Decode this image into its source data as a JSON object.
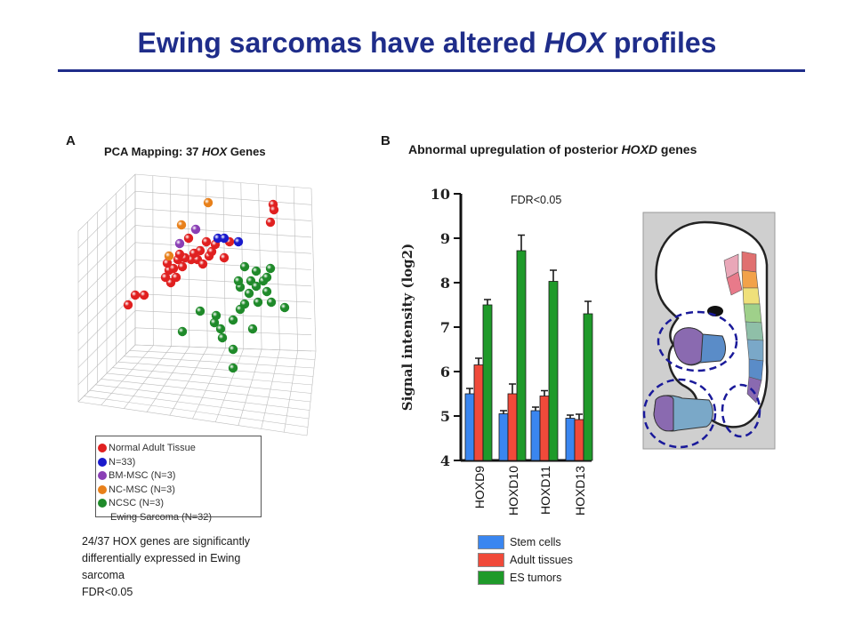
{
  "title": {
    "prefix": "Ewing sarcomas have altered ",
    "italic": "HOX",
    "suffix": " profiles"
  },
  "panelA": {
    "letter": "A",
    "heading_prefix": "PCA Mapping: 37 ",
    "heading_italic": "HOX",
    "heading_suffix": " Genes",
    "legend": [
      {
        "label": "Normal Adult Tissue",
        "color": "#e02020"
      },
      {
        "label": "N=33)",
        "color": "#1a1acc"
      },
      {
        "label": "BM-MSC (N=3)",
        "color": "#8a3fb5"
      },
      {
        "label": "NC-MSC (N=3)",
        "color": "#e8801a"
      },
      {
        "label": "NCSC (N=3)",
        "color": "#1f8a2a"
      },
      {
        "label": "Ewing Sarcoma (N=32)",
        "color": ""
      }
    ],
    "note_lines": [
      "24/37 HOX genes are significantly",
      "differentially expressed in Ewing",
      "sarcoma",
      "FDR<0.05"
    ]
  },
  "panelB": {
    "letter": "B",
    "heading_prefix": "Abnormal upregulation of posterior ",
    "heading_italic": "HOXD",
    "heading_suffix": " genes",
    "fdr": "FDR<0.05",
    "legend": [
      {
        "label": "Stem cells",
        "color": "#3a86f0"
      },
      {
        "label": "Adult tissues",
        "color": "#f04a3a"
      },
      {
        "label": "ES tumors",
        "color": "#1f9a2a"
      }
    ]
  },
  "chart_data": [
    {
      "type": "bar",
      "categories": [
        "HOXD9",
        "HOXD10",
        "HOXD11",
        "HOXD13"
      ],
      "series": [
        {
          "name": "Stem cells",
          "values": [
            5.5,
            5.05,
            5.12,
            4.95
          ],
          "errors": [
            0.12,
            0.07,
            0.08,
            0.07
          ],
          "color": "#3a86f0"
        },
        {
          "name": "Adult tissues",
          "values": [
            6.15,
            5.5,
            5.45,
            4.92
          ],
          "errors": [
            0.15,
            0.22,
            0.12,
            0.12
          ],
          "color": "#f04a3a"
        },
        {
          "name": "ES tumors",
          "values": [
            7.5,
            8.72,
            8.03,
            7.3
          ],
          "errors": [
            0.12,
            0.35,
            0.25,
            0.28
          ],
          "color": "#1f9a2a"
        }
      ],
      "ylabel": "Signal intensity (log2)",
      "ylim": [
        4,
        10
      ],
      "yticks": [
        "4",
        "5",
        "6",
        "7",
        "8",
        "9",
        "10"
      ]
    },
    {
      "type": "scatter",
      "points": [
        {
          "x": 152,
          "y": 332,
          "c": "#e02020"
        },
        {
          "x": 162,
          "y": 332,
          "c": "#e02020"
        },
        {
          "x": 144,
          "y": 343,
          "c": "#e02020"
        },
        {
          "x": 190,
          "y": 304,
          "c": "#e02020"
        },
        {
          "x": 198,
          "y": 312,
          "c": "#e02020"
        },
        {
          "x": 205,
          "y": 300,
          "c": "#e02020"
        },
        {
          "x": 192,
          "y": 318,
          "c": "#e02020"
        },
        {
          "x": 215,
          "y": 292,
          "c": "#e02020"
        },
        {
          "x": 225,
          "y": 282,
          "c": "#e02020"
        },
        {
          "x": 235,
          "y": 288,
          "c": "#e02020"
        },
        {
          "x": 222,
          "y": 292,
          "c": "#e02020"
        },
        {
          "x": 200,
          "y": 292,
          "c": "#e02020"
        },
        {
          "x": 208,
          "y": 290,
          "c": "#e02020"
        },
        {
          "x": 228,
          "y": 297,
          "c": "#e02020"
        },
        {
          "x": 238,
          "y": 283,
          "c": "#e02020"
        },
        {
          "x": 212,
          "y": 268,
          "c": "#e02020"
        },
        {
          "x": 232,
          "y": 272,
          "c": "#e02020"
        },
        {
          "x": 258,
          "y": 272,
          "c": "#e02020"
        },
        {
          "x": 195,
          "y": 302,
          "c": "#e02020"
        },
        {
          "x": 186,
          "y": 312,
          "c": "#e02020"
        },
        {
          "x": 252,
          "y": 290,
          "c": "#e02020"
        },
        {
          "x": 307,
          "y": 230,
          "c": "#e02020"
        },
        {
          "x": 308,
          "y": 236,
          "c": "#e02020"
        },
        {
          "x": 304,
          "y": 250,
          "c": "#e02020"
        },
        {
          "x": 218,
          "y": 285,
          "c": "#e02020"
        },
        {
          "x": 242,
          "y": 275,
          "c": "#e02020"
        },
        {
          "x": 202,
          "y": 286,
          "c": "#e02020"
        },
        {
          "x": 188,
          "y": 296,
          "c": "#e02020"
        },
        {
          "x": 245,
          "y": 268,
          "c": "#1a1acc"
        },
        {
          "x": 252,
          "y": 268,
          "c": "#1a1acc"
        },
        {
          "x": 268,
          "y": 272,
          "c": "#1a1acc"
        },
        {
          "x": 202,
          "y": 274,
          "c": "#8a3fb5"
        },
        {
          "x": 220,
          "y": 258,
          "c": "#8a3fb5"
        },
        {
          "x": 234,
          "y": 228,
          "c": "#e8801a"
        },
        {
          "x": 204,
          "y": 253,
          "c": "#e8801a"
        },
        {
          "x": 190,
          "y": 288,
          "c": "#e8801a"
        },
        {
          "x": 275,
          "y": 300,
          "c": "#1f8a2a"
        },
        {
          "x": 288,
          "y": 305,
          "c": "#1f8a2a"
        },
        {
          "x": 304,
          "y": 302,
          "c": "#1f8a2a"
        },
        {
          "x": 282,
          "y": 316,
          "c": "#1f8a2a"
        },
        {
          "x": 296,
          "y": 316,
          "c": "#1f8a2a"
        },
        {
          "x": 270,
          "y": 323,
          "c": "#1f8a2a"
        },
        {
          "x": 288,
          "y": 322,
          "c": "#1f8a2a"
        },
        {
          "x": 300,
          "y": 328,
          "c": "#1f8a2a"
        },
        {
          "x": 275,
          "y": 342,
          "c": "#1f8a2a"
        },
        {
          "x": 290,
          "y": 340,
          "c": "#1f8a2a"
        },
        {
          "x": 305,
          "y": 340,
          "c": "#1f8a2a"
        },
        {
          "x": 320,
          "y": 346,
          "c": "#1f8a2a"
        },
        {
          "x": 270,
          "y": 348,
          "c": "#1f8a2a"
        },
        {
          "x": 225,
          "y": 350,
          "c": "#1f8a2a"
        },
        {
          "x": 243,
          "y": 355,
          "c": "#1f8a2a"
        },
        {
          "x": 241,
          "y": 363,
          "c": "#1f8a2a"
        },
        {
          "x": 262,
          "y": 360,
          "c": "#1f8a2a"
        },
        {
          "x": 248,
          "y": 370,
          "c": "#1f8a2a"
        },
        {
          "x": 284,
          "y": 370,
          "c": "#1f8a2a"
        },
        {
          "x": 250,
          "y": 380,
          "c": "#1f8a2a"
        },
        {
          "x": 205,
          "y": 373,
          "c": "#1f8a2a"
        },
        {
          "x": 262,
          "y": 393,
          "c": "#1f8a2a"
        },
        {
          "x": 262,
          "y": 414,
          "c": "#1f8a2a"
        },
        {
          "x": 268,
          "y": 316,
          "c": "#1f8a2a"
        },
        {
          "x": 300,
          "y": 312,
          "c": "#1f8a2a"
        },
        {
          "x": 280,
          "y": 330,
          "c": "#1f8a2a"
        }
      ]
    }
  ]
}
